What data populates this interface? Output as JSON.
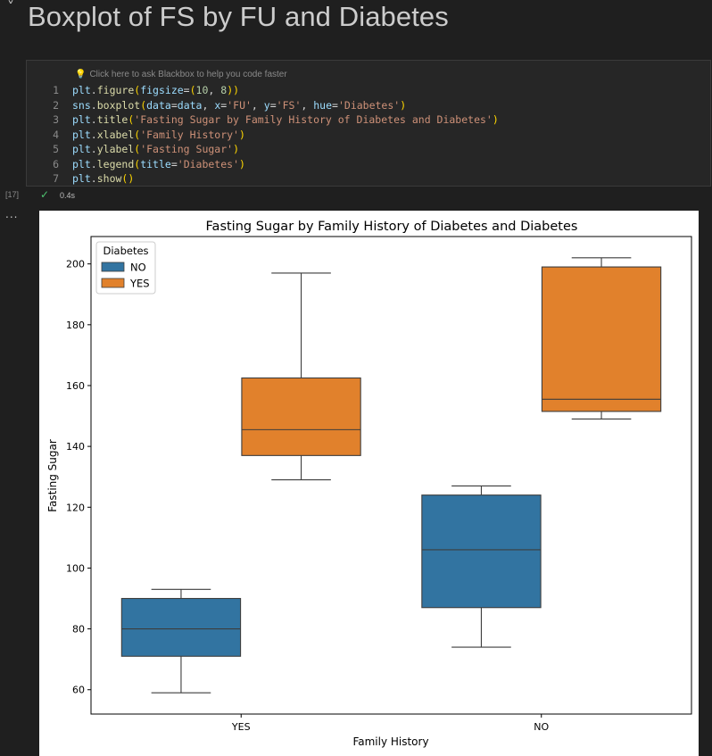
{
  "heading": {
    "chevron": "˅",
    "title": "Boxplot of FS by FU and Diabetes"
  },
  "cell": {
    "hint": "Click here to ask Blackbox to help you code faster",
    "lines": [
      {
        "n": "1",
        "code": "plt.figure(figsize=(10, 8))"
      },
      {
        "n": "2",
        "code": "sns.boxplot(data=data, x='FU', y='FS', hue='Diabetes')"
      },
      {
        "n": "3",
        "code": "plt.title('Fasting Sugar by Family History of Diabetes and Diabetes')"
      },
      {
        "n": "4",
        "code": "plt.xlabel('Family History')"
      },
      {
        "n": "5",
        "code": "plt.ylabel('Fasting Sugar')"
      },
      {
        "n": "6",
        "code": "plt.legend(title='Diabetes')"
      },
      {
        "n": "7",
        "code": "plt.show()"
      }
    ],
    "exec_count": "[17]",
    "exec_time": "0.4s",
    "output_menu": "..."
  },
  "chart_data": {
    "type": "boxplot",
    "title": "Fasting Sugar by Family History of Diabetes and Diabetes",
    "xlabel": "Family History",
    "ylabel": "Fasting Sugar",
    "categories": [
      "YES",
      "NO"
    ],
    "ylim": [
      52,
      209
    ],
    "yticks": [
      60,
      80,
      100,
      120,
      140,
      160,
      180,
      200
    ],
    "legend": {
      "title": "Diabetes",
      "position": "top-left"
    },
    "series": [
      {
        "name": "NO",
        "color": "#3274a1",
        "boxes": [
          {
            "whislo": 59,
            "q1": 71,
            "med": 80,
            "q3": 90,
            "whishi": 93
          },
          {
            "whislo": 74,
            "q1": 87,
            "med": 106,
            "q3": 124,
            "whishi": 127
          }
        ]
      },
      {
        "name": "YES",
        "color": "#e1812c",
        "boxes": [
          {
            "whislo": 129,
            "q1": 137,
            "med": 145.5,
            "q3": 162.5,
            "whishi": 197
          },
          {
            "whislo": 149,
            "q1": 151.5,
            "med": 155.5,
            "q3": 199,
            "whishi": 202
          }
        ]
      }
    ]
  }
}
